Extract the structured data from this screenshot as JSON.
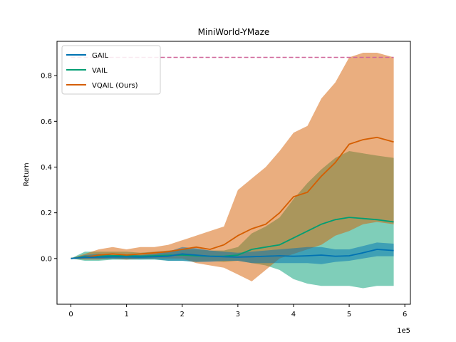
{
  "chart_data": {
    "type": "line",
    "title": "MiniWorld-YMaze",
    "xlabel": "",
    "ylabel": "Return",
    "x_offset_label": "1e5",
    "xlim": [
      -0.25,
      6.1
    ],
    "ylim": [
      -0.2,
      0.95
    ],
    "x_ticks": [
      0,
      1,
      2,
      3,
      4,
      5,
      6
    ],
    "x_tick_labels": [
      "0",
      "1",
      "2",
      "3",
      "4",
      "5",
      "6"
    ],
    "y_ticks": [
      0.0,
      0.2,
      0.4,
      0.6,
      0.8
    ],
    "y_tick_labels": [
      "0.0",
      "0.2",
      "0.4",
      "0.6",
      "0.8"
    ],
    "grid": false,
    "legend_position": "top-left",
    "reference_line": {
      "y": 0.88,
      "x_range": [
        0,
        5.8
      ],
      "color": "#d0679a",
      "style": "dashed"
    },
    "x": [
      0,
      0.25,
      0.5,
      0.75,
      1.0,
      1.25,
      1.5,
      1.75,
      2.0,
      2.25,
      2.5,
      2.75,
      3.0,
      3.25,
      3.5,
      3.75,
      4.0,
      4.25,
      4.5,
      4.75,
      5.0,
      5.25,
      5.5,
      5.8
    ],
    "series": [
      {
        "name": "GAIL",
        "color": "#0072b2",
        "values": [
          0,
          0.005,
          0.006,
          0.007,
          0.007,
          0.006,
          0.008,
          0.01,
          0.02,
          0.015,
          0.01,
          0.008,
          0.006,
          0.008,
          0.01,
          0.012,
          0.01,
          0.012,
          0.015,
          0.01,
          0.012,
          0.025,
          0.04,
          0.035
        ],
        "lower": [
          0,
          -0.002,
          -0.003,
          -0.002,
          -0.003,
          -0.004,
          -0.003,
          -0.01,
          -0.01,
          -0.015,
          -0.015,
          -0.01,
          -0.01,
          -0.02,
          -0.02,
          -0.02,
          -0.02,
          -0.02,
          -0.025,
          -0.015,
          -0.01,
          0.0,
          0.01,
          0.01
        ],
        "upper": [
          0,
          0.015,
          0.02,
          0.015,
          0.015,
          0.015,
          0.02,
          0.03,
          0.05,
          0.045,
          0.035,
          0.03,
          0.025,
          0.03,
          0.035,
          0.04,
          0.045,
          0.05,
          0.05,
          0.04,
          0.04,
          0.055,
          0.07,
          0.065
        ]
      },
      {
        "name": "VAIL",
        "color": "#009e73",
        "values": [
          0,
          0.008,
          0.01,
          0.012,
          0.012,
          0.01,
          0.012,
          0.014,
          0.015,
          0.012,
          0.01,
          0.01,
          0.015,
          0.04,
          0.05,
          0.06,
          0.09,
          0.12,
          0.15,
          0.17,
          0.18,
          0.175,
          0.17,
          0.16
        ],
        "lower": [
          0,
          -0.01,
          -0.01,
          -0.005,
          -0.005,
          -0.005,
          -0.005,
          -0.01,
          -0.01,
          -0.015,
          -0.01,
          -0.015,
          -0.01,
          -0.02,
          -0.03,
          -0.05,
          -0.09,
          -0.11,
          -0.12,
          -0.12,
          -0.12,
          -0.13,
          -0.12,
          -0.12
        ],
        "upper": [
          0,
          0.03,
          0.03,
          0.03,
          0.03,
          0.025,
          0.03,
          0.035,
          0.04,
          0.04,
          0.035,
          0.035,
          0.05,
          0.11,
          0.14,
          0.18,
          0.26,
          0.33,
          0.39,
          0.44,
          0.47,
          0.46,
          0.45,
          0.44
        ]
      },
      {
        "name": "VQAIL (Ours)",
        "color": "#d55e00",
        "values": [
          0,
          0.005,
          0.015,
          0.02,
          0.015,
          0.02,
          0.025,
          0.03,
          0.04,
          0.05,
          0.04,
          0.06,
          0.1,
          0.13,
          0.15,
          0.2,
          0.27,
          0.29,
          0.36,
          0.42,
          0.5,
          0.52,
          0.53,
          0.51
        ],
        "lower": [
          0,
          -0.005,
          -0.005,
          0.0,
          -0.005,
          0.0,
          0.0,
          0.0,
          0.0,
          -0.02,
          -0.03,
          -0.04,
          -0.07,
          -0.1,
          -0.05,
          0.0,
          0.02,
          0.04,
          0.06,
          0.1,
          0.12,
          0.15,
          0.16,
          0.15
        ],
        "upper": [
          0,
          0.02,
          0.04,
          0.05,
          0.04,
          0.05,
          0.05,
          0.06,
          0.08,
          0.1,
          0.12,
          0.14,
          0.3,
          0.35,
          0.4,
          0.47,
          0.55,
          0.58,
          0.7,
          0.77,
          0.88,
          0.9,
          0.9,
          0.88
        ]
      }
    ]
  }
}
